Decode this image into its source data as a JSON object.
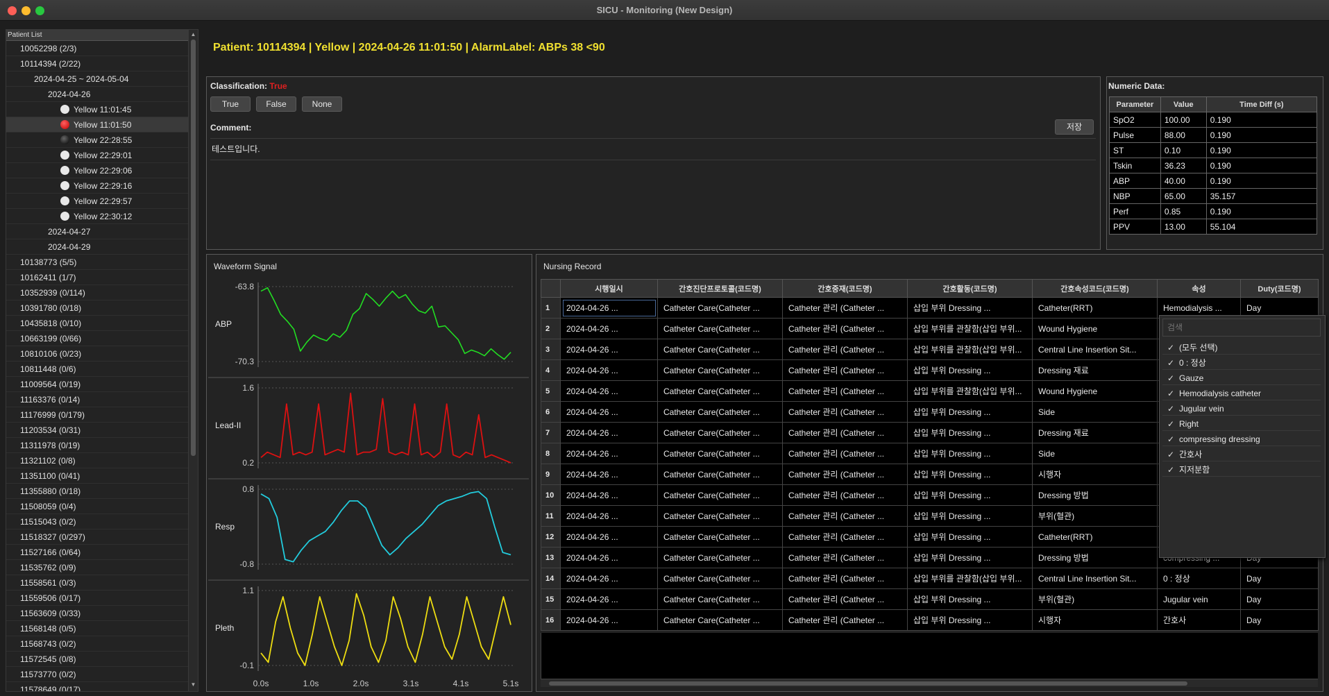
{
  "window": {
    "title": "SICU - Monitoring (New Design)",
    "colors": {
      "close": "#fe5f57",
      "minimize": "#febc2e",
      "maximize": "#28c840"
    }
  },
  "sidebar": {
    "header": "Patient List",
    "items": [
      {
        "label": "10052298 (2/3)",
        "indent": 1
      },
      {
        "label": "10114394 (2/22)",
        "indent": 1
      },
      {
        "label": "2024-04-25 ~ 2024-05-04",
        "indent": 2
      },
      {
        "label": "2024-04-26",
        "indent": 3
      },
      {
        "label": "Yellow 11:01:45",
        "indent": 4,
        "bullet": "#e8e8e8"
      },
      {
        "label": "Yellow 11:01:50",
        "indent": 4,
        "bullet": "#e02020",
        "selected": true
      },
      {
        "label": "Yellow 22:28:55",
        "indent": 4,
        "bullet": "#111111"
      },
      {
        "label": "Yellow 22:29:01",
        "indent": 4,
        "bullet": "#e8e8e8"
      },
      {
        "label": "Yellow 22:29:06",
        "indent": 4,
        "bullet": "#e8e8e8"
      },
      {
        "label": "Yellow 22:29:16",
        "indent": 4,
        "bullet": "#e8e8e8"
      },
      {
        "label": "Yellow 22:29:57",
        "indent": 4,
        "bullet": "#e8e8e8"
      },
      {
        "label": "Yellow 22:30:12",
        "indent": 4,
        "bullet": "#e8e8e8"
      },
      {
        "label": "2024-04-27",
        "indent": 3
      },
      {
        "label": "2024-04-29",
        "indent": 3
      },
      {
        "label": "10138773 (5/5)",
        "indent": 1
      },
      {
        "label": "10162411 (1/7)",
        "indent": 1
      },
      {
        "label": "10352939 (0/114)",
        "indent": 1
      },
      {
        "label": "10391780 (0/18)",
        "indent": 1
      },
      {
        "label": "10435818 (0/10)",
        "indent": 1
      },
      {
        "label": "10663199 (0/66)",
        "indent": 1
      },
      {
        "label": "10810106 (0/23)",
        "indent": 1
      },
      {
        "label": "10811448 (0/6)",
        "indent": 1
      },
      {
        "label": "11009564 (0/19)",
        "indent": 1
      },
      {
        "label": "11163376 (0/14)",
        "indent": 1
      },
      {
        "label": "11176999 (0/179)",
        "indent": 1
      },
      {
        "label": "11203534 (0/31)",
        "indent": 1
      },
      {
        "label": "11311978 (0/19)",
        "indent": 1
      },
      {
        "label": "11321102 (0/8)",
        "indent": 1
      },
      {
        "label": "11351100 (0/41)",
        "indent": 1
      },
      {
        "label": "11355880 (0/18)",
        "indent": 1
      },
      {
        "label": "11508059 (0/4)",
        "indent": 1
      },
      {
        "label": "11515043 (0/2)",
        "indent": 1
      },
      {
        "label": "11518327 (0/297)",
        "indent": 1
      },
      {
        "label": "11527166 (0/64)",
        "indent": 1
      },
      {
        "label": "11535762 (0/9)",
        "indent": 1
      },
      {
        "label": "11558561 (0/3)",
        "indent": 1
      },
      {
        "label": "11559506 (0/17)",
        "indent": 1
      },
      {
        "label": "11563609 (0/33)",
        "indent": 1
      },
      {
        "label": "11568148 (0/5)",
        "indent": 1
      },
      {
        "label": "11568743 (0/2)",
        "indent": 1
      },
      {
        "label": "11572545 (0/8)",
        "indent": 1
      },
      {
        "label": "11573770 (0/2)",
        "indent": 1
      },
      {
        "label": "11578649 (0/17)",
        "indent": 1
      }
    ]
  },
  "header": {
    "patient_line": "Patient: 10114394 | Yellow | 2024-04-26 11:01:50 | AlarmLabel: ABPs  38 <90"
  },
  "classification": {
    "label": "Classification:",
    "value": "True",
    "value_color": "#e02020",
    "buttons": [
      "True",
      "False",
      "None"
    ],
    "comment_label": "Comment:",
    "save_label": "저장",
    "comment_text": "테스트입니다."
  },
  "numeric": {
    "title": "Numeric Data:",
    "columns": [
      "Parameter",
      "Value",
      "Time Diff (s)"
    ],
    "rows": [
      [
        "SpO2",
        "100.00",
        "0.190"
      ],
      [
        "Pulse",
        "88.00",
        "0.190"
      ],
      [
        "ST",
        "0.10",
        "0.190"
      ],
      [
        "Tskin",
        "36.23",
        "0.190"
      ],
      [
        "ABP",
        "40.00",
        "0.190"
      ],
      [
        "NBP",
        "65.00",
        "35.157"
      ],
      [
        "Perf",
        "0.85",
        "0.190"
      ],
      [
        "PPV",
        "13.00",
        "55.104"
      ]
    ]
  },
  "chart_data": {
    "type": "line",
    "title": "Waveform Signal",
    "xlabel": "",
    "x_ticks": [
      "0.0s",
      "1.0s",
      "2.0s",
      "3.1s",
      "4.1s",
      "5.1s"
    ],
    "xlim": [
      0,
      5.1
    ],
    "series": [
      {
        "name": "ABP",
        "color": "#22dd22",
        "ylim": [
          -70.3,
          -63.8
        ],
        "y_ticks": [
          "-63.8",
          "-70.3"
        ],
        "values": [
          -64.2,
          -63.9,
          -65.0,
          -66.2,
          -66.8,
          -67.5,
          -69.4,
          -68.6,
          -68.0,
          -68.3,
          -68.5,
          -67.9,
          -68.2,
          -67.6,
          -66.2,
          -65.7,
          -64.4,
          -64.9,
          -65.5,
          -64.8,
          -64.2,
          -64.8,
          -64.5,
          -65.3,
          -65.9,
          -66.1,
          -65.5,
          -67.3,
          -67.2,
          -67.8,
          -68.4,
          -69.6,
          -69.3,
          -69.5,
          -69.8,
          -69.2,
          -69.7,
          -70.1,
          -69.5
        ]
      },
      {
        "name": "Lead-II",
        "color": "#dd1111",
        "ylim": [
          0.2,
          1.6
        ],
        "y_ticks": [
          "1.6",
          "0.2"
        ],
        "values": [
          0.3,
          0.4,
          0.35,
          0.3,
          1.3,
          0.35,
          0.4,
          0.35,
          0.4,
          1.3,
          0.35,
          0.4,
          0.45,
          0.4,
          1.5,
          0.35,
          0.4,
          0.4,
          0.45,
          1.4,
          0.4,
          0.35,
          0.4,
          0.35,
          1.3,
          0.35,
          0.4,
          0.3,
          0.4,
          1.3,
          0.35,
          0.3,
          0.4,
          0.35,
          1.1,
          0.3,
          0.35,
          0.3,
          0.25,
          0.2
        ]
      },
      {
        "name": "Resp",
        "color": "#22ccdd",
        "ylim": [
          -0.8,
          0.8
        ],
        "y_ticks": [
          "0.8",
          "-0.8"
        ],
        "values": [
          0.7,
          0.6,
          0.2,
          -0.7,
          -0.75,
          -0.5,
          -0.3,
          -0.2,
          -0.1,
          0.1,
          0.35,
          0.55,
          0.55,
          0.4,
          0.0,
          -0.4,
          -0.6,
          -0.45,
          -0.25,
          -0.1,
          0.05,
          0.25,
          0.45,
          0.55,
          0.6,
          0.65,
          0.72,
          0.75,
          0.6,
          0.0,
          -0.55,
          -0.6
        ]
      },
      {
        "name": "Pleth",
        "color": "#eedd11",
        "ylim": [
          -0.1,
          1.1
        ],
        "y_ticks": [
          "1.1",
          "-0.1"
        ],
        "values": [
          0.1,
          -0.05,
          0.6,
          1.0,
          0.5,
          0.1,
          -0.1,
          0.4,
          1.0,
          0.6,
          0.2,
          -0.1,
          0.3,
          1.05,
          0.7,
          0.2,
          -0.05,
          0.3,
          1.0,
          0.65,
          0.2,
          -0.05,
          0.4,
          1.0,
          0.6,
          0.2,
          0.0,
          0.4,
          1.0,
          0.6,
          0.2,
          0.0,
          0.5,
          1.0,
          0.55
        ]
      }
    ]
  },
  "nursing": {
    "title": "Nursing Record",
    "columns": [
      "시행일시",
      "간호진단프로토콜(코드명)",
      "간호중재(코드명)",
      "간호활동(코드명)",
      "간호속성코드(코드명)",
      "속성",
      "Duty(코드명)"
    ],
    "rows": [
      [
        "2024-04-26 ...",
        "Catheter Care(Catheter ...",
        "Catheter 관리 (Catheter ...",
        "삽입 부위 Dressing ...",
        "Catheter(RRT)",
        "Hemodialysis ...",
        "Day"
      ],
      [
        "2024-04-26 ...",
        "Catheter Care(Catheter ...",
        "Catheter 관리 (Catheter ...",
        "삽입 부위를 관찰함(삽입 부위...",
        "Wound Hygiene",
        "",
        ""
      ],
      [
        "2024-04-26 ...",
        "Catheter Care(Catheter ...",
        "Catheter 관리 (Catheter ...",
        "삽입 부위를 관찰함(삽입 부위...",
        "Central Line Insertion Sit...",
        "",
        ""
      ],
      [
        "2024-04-26 ...",
        "Catheter Care(Catheter ...",
        "Catheter 관리 (Catheter ...",
        "삽입 부위 Dressing ...",
        "Dressing 재료",
        "",
        ""
      ],
      [
        "2024-04-26 ...",
        "Catheter Care(Catheter ...",
        "Catheter 관리 (Catheter ...",
        "삽입 부위를 관찰함(삽입 부위...",
        "Wound Hygiene",
        "",
        ""
      ],
      [
        "2024-04-26 ...",
        "Catheter Care(Catheter ...",
        "Catheter 관리 (Catheter ...",
        "삽입 부위 Dressing ...",
        "Side",
        "",
        ""
      ],
      [
        "2024-04-26 ...",
        "Catheter Care(Catheter ...",
        "Catheter 관리 (Catheter ...",
        "삽입 부위 Dressing ...",
        "Dressing 재료",
        "",
        ""
      ],
      [
        "2024-04-26 ...",
        "Catheter Care(Catheter ...",
        "Catheter 관리 (Catheter ...",
        "삽입 부위 Dressing ...",
        "Side",
        "",
        ""
      ],
      [
        "2024-04-26 ...",
        "Catheter Care(Catheter ...",
        "Catheter 관리 (Catheter ...",
        "삽입 부위 Dressing ...",
        "시행자",
        "",
        ""
      ],
      [
        "2024-04-26 ...",
        "Catheter Care(Catheter ...",
        "Catheter 관리 (Catheter ...",
        "삽입 부위 Dressing ...",
        "Dressing 방법",
        "",
        ""
      ],
      [
        "2024-04-26 ...",
        "Catheter Care(Catheter ...",
        "Catheter 관리 (Catheter ...",
        "삽입 부위 Dressing ...",
        "부위(혈관)",
        "",
        ""
      ],
      [
        "2024-04-26 ...",
        "Catheter Care(Catheter ...",
        "Catheter 관리 (Catheter ...",
        "삽입 부위 Dressing ...",
        "Catheter(RRT)",
        "",
        ""
      ],
      [
        "2024-04-26 ...",
        "Catheter Care(Catheter ...",
        "Catheter 관리 (Catheter ...",
        "삽입 부위 Dressing ...",
        "Dressing 방법",
        "compressing ...",
        "Day"
      ],
      [
        "2024-04-26 ...",
        "Catheter Care(Catheter ...",
        "Catheter 관리 (Catheter ...",
        "삽입 부위를 관찰함(삽입 부위...",
        "Central Line Insertion Sit...",
        "0 : 정상",
        "Day"
      ],
      [
        "2024-04-26 ...",
        "Catheter Care(Catheter ...",
        "Catheter 관리 (Catheter ...",
        "삽입 부위 Dressing ...",
        "부위(혈관)",
        "Jugular vein",
        "Day"
      ],
      [
        "2024-04-26 ...",
        "Catheter Care(Catheter ...",
        "Catheter 관리 (Catheter ...",
        "삽입 부위 Dressing ...",
        "시행자",
        "간호사",
        "Day"
      ]
    ]
  },
  "filter": {
    "placeholder": "검색",
    "options": [
      "(모두 선택)",
      "0 : 정상",
      "Gauze",
      "Hemodialysis catheter",
      "Jugular vein",
      "Right",
      "compressing dressing",
      "간호사",
      "지저분함"
    ]
  }
}
